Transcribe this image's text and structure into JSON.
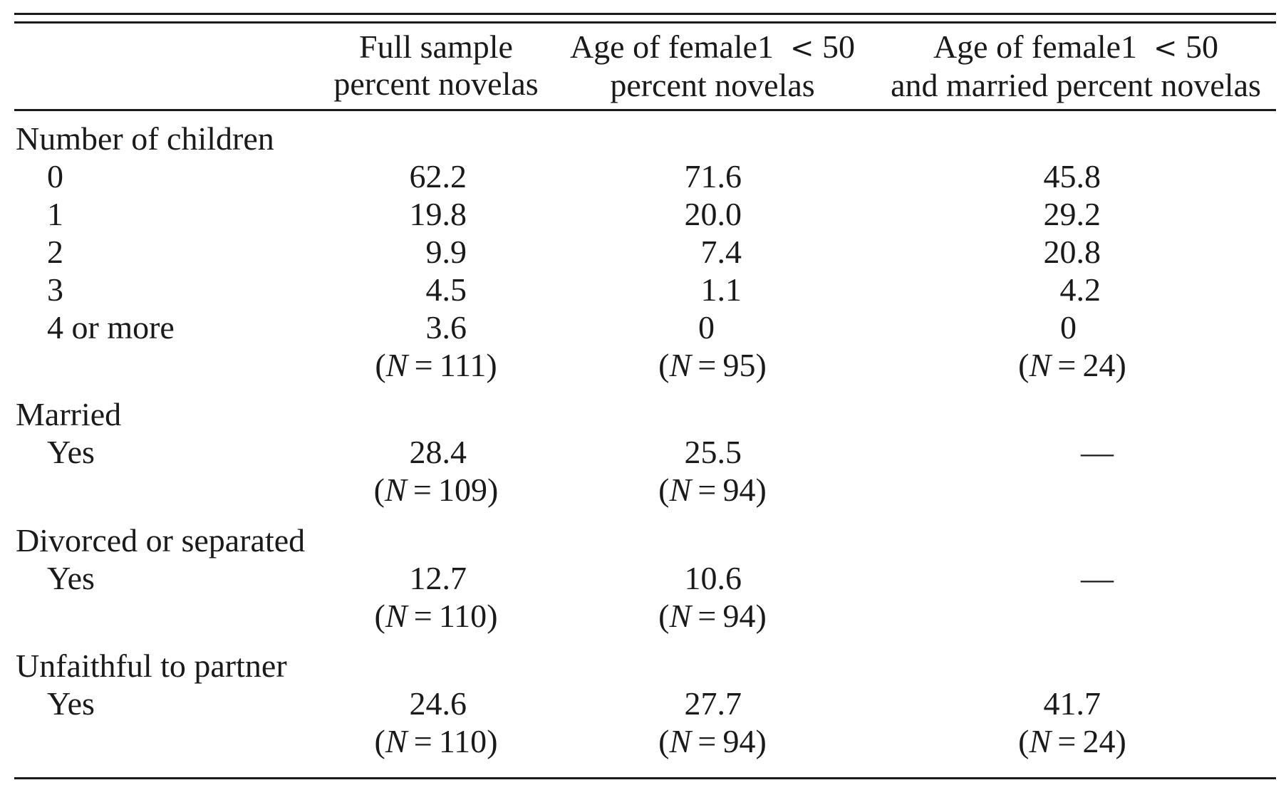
{
  "columns": [
    {
      "line1": "Full sample",
      "line2": "percent novelas"
    },
    {
      "line1": "Age of female1",
      "lt": "<",
      "threshold": "50",
      "line2": "percent novelas"
    },
    {
      "line1": "Age of female1",
      "lt": "<",
      "threshold": "50",
      "line2": "and married percent novelas"
    }
  ],
  "sections": {
    "children": {
      "title": "Number of children",
      "rows": [
        {
          "label": "0",
          "v": [
            "62.2",
            "71.6",
            "45.8"
          ]
        },
        {
          "label": "1",
          "v": [
            "19.8",
            "20.0",
            "29.2"
          ]
        },
        {
          "label": "2",
          "v": [
            "9.9",
            "7.4",
            "20.8"
          ]
        },
        {
          "label": "3",
          "v": [
            "4.5",
            "1.1",
            "4.2"
          ]
        },
        {
          "label": "4 or more",
          "v": [
            "3.6",
            "0",
            "0"
          ]
        }
      ],
      "n": [
        "111",
        "95",
        "24"
      ]
    },
    "married": {
      "title": "Married",
      "label": "Yes",
      "v": [
        "28.4",
        "25.5",
        "—"
      ],
      "n": [
        "109",
        "94"
      ]
    },
    "divorced": {
      "title": "Divorced or separated",
      "label": "Yes",
      "v": [
        "12.7",
        "10.6",
        "—"
      ],
      "n": [
        "110",
        "94"
      ]
    },
    "unfaithful": {
      "title": "Unfaithful to partner",
      "label": "Yes",
      "v": [
        "24.6",
        "27.7",
        "41.7"
      ],
      "n": [
        "110",
        "94",
        "24"
      ]
    }
  },
  "n_symbol": "N",
  "equals": "="
}
